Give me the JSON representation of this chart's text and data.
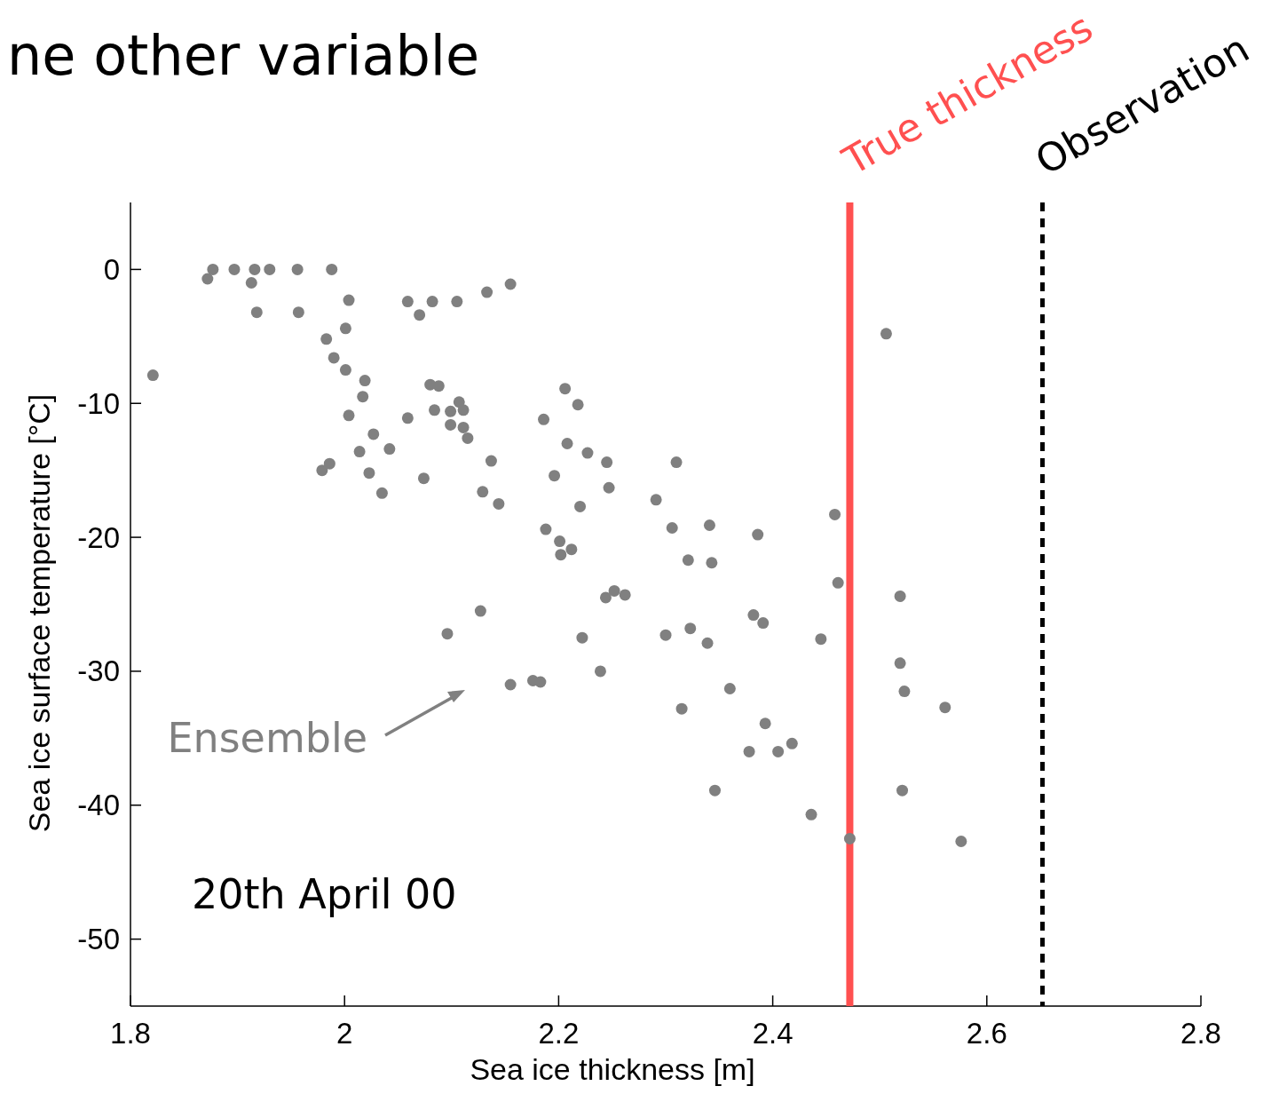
{
  "chart_data": {
    "type": "scatter",
    "title": "ne other variable",
    "xlabel": "Sea ice thickness [m]",
    "ylabel": "Sea ice surface temperature [°C]",
    "xlim": [
      1.8,
      2.8
    ],
    "ylim": [
      -55,
      5
    ],
    "xticks": [
      1.8,
      2,
      2.2,
      2.4,
      2.6,
      2.8
    ],
    "yticks": [
      -50,
      -40,
      -30,
      -20,
      -10,
      0
    ],
    "grid": false,
    "marker": "circle",
    "series": [
      {
        "color": "#808080",
        "x": [
          1.821,
          1.872,
          1.877,
          1.897,
          1.913,
          1.916,
          1.918,
          1.93,
          1.956,
          1.957,
          1.988,
          2.004,
          2.001,
          1.983,
          1.99,
          2.001,
          2.019,
          2.017,
          2.004,
          1.979,
          1.986,
          2.014,
          2.027,
          2.023,
          2.035,
          2.042,
          2.059,
          2.07,
          2.082,
          2.105,
          2.133,
          2.155,
          2.059,
          2.08,
          2.088,
          2.084,
          2.099,
          2.107,
          2.111,
          2.099,
          2.111,
          2.115,
          2.074,
          2.137,
          2.129,
          2.144,
          2.186,
          2.206,
          2.218,
          2.208,
          2.196,
          2.227,
          2.245,
          2.247,
          2.22,
          2.188,
          2.201,
          2.212,
          2.202,
          2.291,
          2.31,
          2.306,
          2.341,
          2.386,
          2.321,
          2.343,
          2.244,
          2.252,
          2.262,
          2.127,
          2.096,
          2.222,
          2.3,
          2.323,
          2.339,
          2.382,
          2.391,
          2.445,
          2.458,
          2.461,
          2.506,
          2.519,
          2.519,
          2.523,
          2.561,
          2.521,
          2.576,
          2.472,
          2.436,
          2.346,
          2.378,
          2.405,
          2.418,
          2.393,
          2.36,
          2.315,
          2.239,
          2.155,
          2.176,
          2.183
        ],
        "values": [
          -7.9,
          -0.7,
          0,
          0,
          -1.0,
          0,
          -3.2,
          0,
          0,
          -3.2,
          0,
          -2.3,
          -4.4,
          -5.2,
          -6.6,
          -7.5,
          -8.3,
          -9.5,
          -10.9,
          -15.0,
          -14.5,
          -13.6,
          -12.3,
          -15.2,
          -16.7,
          -13.4,
          -2.4,
          -3.4,
          -2.4,
          -2.4,
          -1.7,
          -1.1,
          -11.1,
          -8.6,
          -8.7,
          -10.5,
          -10.6,
          -9.9,
          -10.5,
          -11.6,
          -11.8,
          -12.6,
          -15.6,
          -14.3,
          -16.6,
          -17.5,
          -11.2,
          -8.9,
          -10.1,
          -13.0,
          -15.4,
          -13.7,
          -14.4,
          -16.3,
          -17.7,
          -19.4,
          -20.3,
          -20.9,
          -21.3,
          -17.2,
          -14.4,
          -19.3,
          -19.1,
          -19.8,
          -21.7,
          -21.9,
          -24.5,
          -24.0,
          -24.3,
          -25.5,
          -27.2,
          -27.5,
          -27.3,
          -26.8,
          -27.9,
          -25.8,
          -26.4,
          -27.6,
          -18.3,
          -23.4,
          -4.8,
          -24.4,
          -29.4,
          -31.5,
          -32.7,
          -38.9,
          -42.7,
          -42.5,
          -40.7,
          -38.9,
          -36.0,
          -36.0,
          -35.4,
          -33.9,
          -31.3,
          -32.8,
          -30.0,
          -31.0,
          -30.7,
          -30.8
        ]
      }
    ],
    "ref_lines": [
      {
        "axis": "x",
        "value": 2.472,
        "label": "True thickness",
        "color": "#ff5050",
        "line_style": "solid"
      },
      {
        "axis": "x",
        "value": 2.652,
        "label": "Observation",
        "color": "#000000",
        "line_style": "dashed"
      }
    ],
    "annotations": [
      "Ensemble",
      "20th April 00"
    ]
  }
}
